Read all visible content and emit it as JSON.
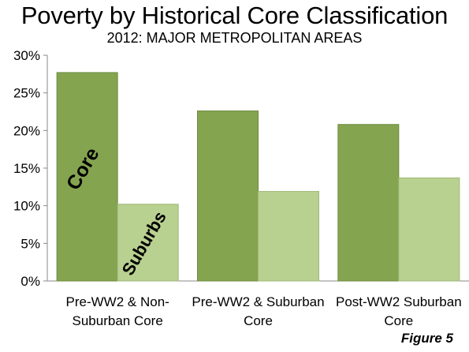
{
  "title": "Poverty by Historical Core Classification",
  "subtitle": "2012: MAJOR METROPOLITAN AREAS",
  "figure_label": "Figure 5",
  "chart_data": {
    "type": "bar",
    "categories": [
      [
        "Pre-WW2 & Non-",
        "Suburban Core"
      ],
      [
        "Pre-WW2 & Suburban",
        "Core"
      ],
      [
        "Post-WW2 Suburban",
        "Core"
      ]
    ],
    "series": [
      {
        "name": "Core",
        "values": [
          27.7,
          22.6,
          20.8
        ],
        "color": "#85a450",
        "border": "#6d8a3e"
      },
      {
        "name": "Suburbs",
        "values": [
          10.2,
          11.9,
          13.7
        ],
        "color": "#b8d090",
        "border": "#9fb878"
      }
    ],
    "ylim": [
      0,
      30
    ],
    "yticks": [
      0,
      5,
      10,
      15,
      20,
      25,
      30
    ],
    "ytick_labels": [
      "0%",
      "5%",
      "10%",
      "15%",
      "20%",
      "25%",
      "30%"
    ],
    "grid": false,
    "legend": "in-bar labels"
  }
}
